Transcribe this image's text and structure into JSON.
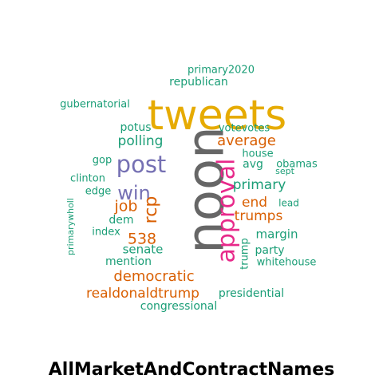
{
  "caption": "AllMarketAndContractNames",
  "palette": {
    "green": "#1b9e77",
    "orange": "#d95f02",
    "purple": "#7570b3",
    "magenta": "#e7298a",
    "gold": "#e6ab02",
    "gray": "#666666"
  },
  "words": [
    {
      "text": "noon",
      "color": "gray",
      "rotated": true
    },
    {
      "text": "tweets",
      "color": "gold",
      "rotated": false
    },
    {
      "text": "approval",
      "color": "magenta",
      "rotated": true
    },
    {
      "text": "post",
      "color": "purple",
      "rotated": false
    },
    {
      "text": "win",
      "color": "purple",
      "rotated": false
    },
    {
      "text": "rcp",
      "color": "orange",
      "rotated": true
    },
    {
      "text": "average",
      "color": "orange",
      "rotated": false
    },
    {
      "text": "democratic",
      "color": "orange",
      "rotated": false
    },
    {
      "text": "realdonaldtrump",
      "color": "orange",
      "rotated": false
    },
    {
      "text": "trumps",
      "color": "orange",
      "rotated": false
    },
    {
      "text": "job",
      "color": "orange",
      "rotated": false
    },
    {
      "text": "538",
      "color": "orange",
      "rotated": false
    },
    {
      "text": "end",
      "color": "orange",
      "rotated": false
    },
    {
      "text": "polling",
      "color": "green",
      "rotated": false
    },
    {
      "text": "primary",
      "color": "green",
      "rotated": false
    },
    {
      "text": "potus",
      "color": "green",
      "rotated": false
    },
    {
      "text": "republican",
      "color": "green",
      "rotated": false
    },
    {
      "text": "primary2020",
      "color": "green",
      "rotated": false
    },
    {
      "text": "gubernatorial",
      "color": "green",
      "rotated": false
    },
    {
      "text": "votevotes",
      "color": "green",
      "rotated": false
    },
    {
      "text": "house",
      "color": "green",
      "rotated": false
    },
    {
      "text": "avg",
      "color": "green",
      "rotated": false
    },
    {
      "text": "obamas",
      "color": "green",
      "rotated": false
    },
    {
      "text": "sept",
      "color": "green",
      "rotated": false
    },
    {
      "text": "gop",
      "color": "green",
      "rotated": false
    },
    {
      "text": "clinton",
      "color": "green",
      "rotated": false
    },
    {
      "text": "edge",
      "color": "green",
      "rotated": false
    },
    {
      "text": "lead",
      "color": "green",
      "rotated": false
    },
    {
      "text": "dem",
      "color": "green",
      "rotated": false
    },
    {
      "text": "index",
      "color": "green",
      "rotated": false
    },
    {
      "text": "margin",
      "color": "green",
      "rotated": false
    },
    {
      "text": "senate",
      "color": "green",
      "rotated": false
    },
    {
      "text": "party",
      "color": "green",
      "rotated": false
    },
    {
      "text": "mention",
      "color": "green",
      "rotated": false
    },
    {
      "text": "trump",
      "color": "green",
      "rotated": true
    },
    {
      "text": "whitehouse",
      "color": "green",
      "rotated": false
    },
    {
      "text": "primarywholl",
      "color": "green",
      "rotated": true
    },
    {
      "text": "presidential",
      "color": "green",
      "rotated": false
    },
    {
      "text": "congressional",
      "color": "green",
      "rotated": false
    }
  ]
}
